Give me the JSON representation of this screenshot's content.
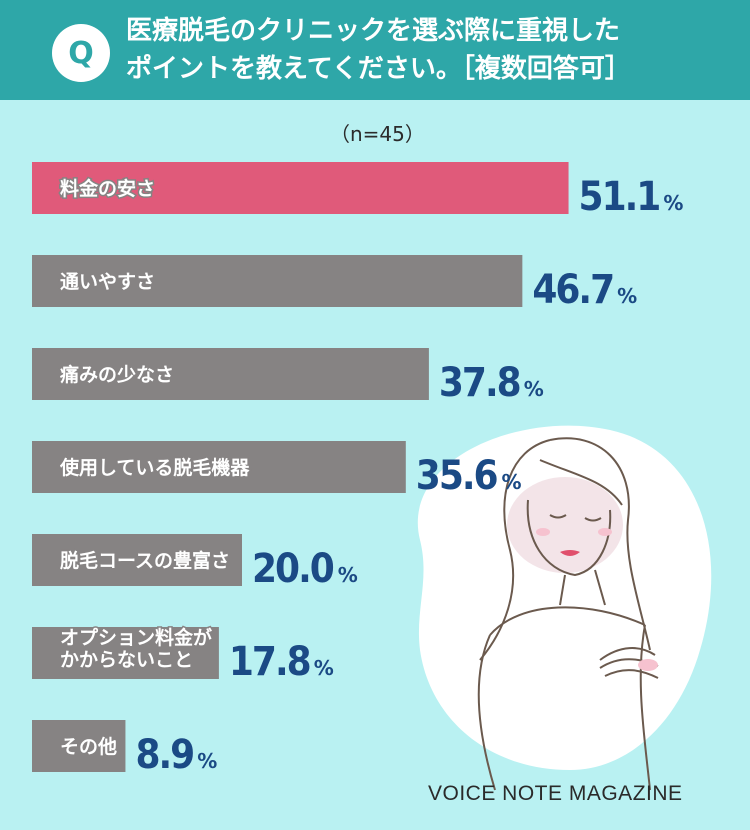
{
  "header": {
    "badge": "Q",
    "question_line1": "医療脱毛のクリニックを選ぶ際に重視した",
    "question_line2": "ポイントを教えてください。［複数回答可］"
  },
  "sample_size": "（n=45）",
  "chart_data": {
    "type": "bar",
    "orientation": "horizontal",
    "categories": [
      [
        "料金の安さ"
      ],
      [
        "通いやすさ"
      ],
      [
        "痛みの少なさ"
      ],
      [
        "使用している脱毛機器"
      ],
      [
        "脱毛コースの豊富さ"
      ],
      [
        "オプション料金が",
        "かからないこと"
      ],
      [
        "その他"
      ]
    ],
    "values": [
      51.1,
      46.7,
      37.8,
      35.6,
      20.0,
      17.8,
      8.9
    ],
    "value_labels": [
      "51.1",
      "46.7",
      "37.8",
      "35.6",
      "20.0",
      "17.8",
      "8.9"
    ],
    "unit": "%",
    "colors": {
      "highlight": "#e05a7a",
      "bar": "#868383",
      "value_text": "#1b4a85",
      "label_text": "#ffffff"
    }
  },
  "brand": "VOICE NOTE MAGAZINE",
  "colors": {
    "background": "#b9f1f2",
    "header": "#2ea7a8"
  }
}
